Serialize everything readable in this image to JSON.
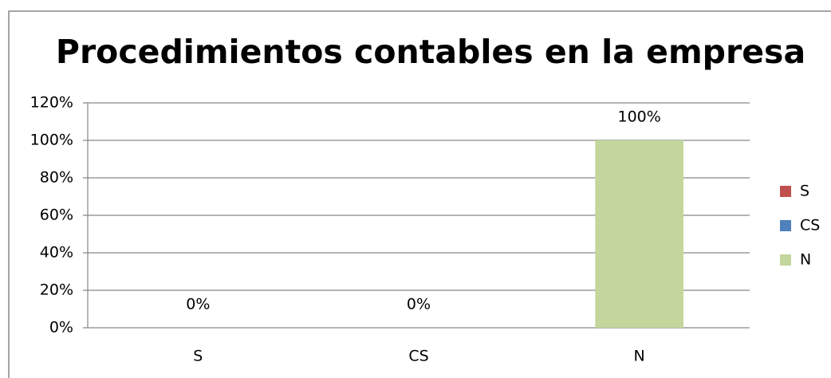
{
  "chart_data": {
    "type": "bar",
    "title": "Procedimientos contables en la empresa",
    "categories": [
      "S",
      "CS",
      "N"
    ],
    "values": [
      0,
      0,
      100
    ],
    "value_labels": [
      "0%",
      "0%",
      "100%"
    ],
    "colors": [
      "#c0504d",
      "#4f81bd",
      "#c3d69b"
    ],
    "ylim": [
      0,
      120
    ],
    "yticks": [
      {
        "value": 0,
        "label": "0%"
      },
      {
        "value": 20,
        "label": "20%"
      },
      {
        "value": 40,
        "label": "40%"
      },
      {
        "value": 60,
        "label": "60%"
      },
      {
        "value": 80,
        "label": "80%"
      },
      {
        "value": 100,
        "label": "100%"
      },
      {
        "value": 120,
        "label": "120%"
      }
    ],
    "grid": true,
    "legend": "right"
  }
}
